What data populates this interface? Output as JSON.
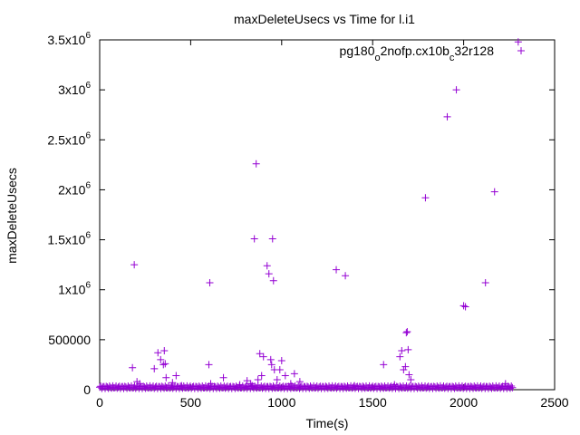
{
  "chart_data": {
    "type": "scatter",
    "title": "maxDeleteUsecs vs Time for l.i1",
    "xlabel": "Time(s)",
    "ylabel": "maxDeleteUsecs",
    "xlim": [
      0,
      2500
    ],
    "ylim": [
      0,
      3500000
    ],
    "grid": false,
    "legend_position": "top-right",
    "x_ticks": [
      {
        "value": 0,
        "label": "0"
      },
      {
        "value": 500,
        "label": "500"
      },
      {
        "value": 1000,
        "label": "1000"
      },
      {
        "value": 1500,
        "label": "1500"
      },
      {
        "value": 2000,
        "label": "2000"
      },
      {
        "value": 2500,
        "label": "2500"
      }
    ],
    "y_ticks": [
      {
        "value": 0,
        "base": "0",
        "exp": ""
      },
      {
        "value": 500000,
        "base": "500000",
        "exp": ""
      },
      {
        "value": 1000000,
        "base": "1x10",
        "exp": "6"
      },
      {
        "value": 1500000,
        "base": "1.5x10",
        "exp": "6"
      },
      {
        "value": 2000000,
        "base": "2x10",
        "exp": "6"
      },
      {
        "value": 2500000,
        "base": "2.5x10",
        "exp": "6"
      },
      {
        "value": 3000000,
        "base": "3x10",
        "exp": "6"
      },
      {
        "value": 3500000,
        "base": "3.5x10",
        "exp": "6"
      }
    ],
    "series": [
      {
        "name_parts": [
          {
            "text": "pg180",
            "sub": false
          },
          {
            "text": "o",
            "sub": true
          },
          {
            "text": "2nofp.cx10b",
            "sub": false
          },
          {
            "text": "c",
            "sub": true
          },
          {
            "text": "32r128",
            "sub": false
          }
        ],
        "color": "#9400d3",
        "marker": "plus",
        "points": [
          [
            180,
            220000
          ],
          [
            190,
            1250000
          ],
          [
            205,
            80000
          ],
          [
            220,
            60000
          ],
          [
            300,
            210000
          ],
          [
            320,
            370000
          ],
          [
            335,
            300000
          ],
          [
            350,
            250000
          ],
          [
            355,
            390000
          ],
          [
            360,
            260000
          ],
          [
            365,
            120000
          ],
          [
            400,
            70000
          ],
          [
            420,
            140000
          ],
          [
            450,
            40000
          ],
          [
            600,
            250000
          ],
          [
            605,
            1070000
          ],
          [
            610,
            60000
          ],
          [
            680,
            120000
          ],
          [
            770,
            50000
          ],
          [
            810,
            90000
          ],
          [
            830,
            60000
          ],
          [
            840,
            40000
          ],
          [
            850,
            1510000
          ],
          [
            860,
            2260000
          ],
          [
            870,
            100000
          ],
          [
            880,
            360000
          ],
          [
            890,
            140000
          ],
          [
            900,
            330000
          ],
          [
            920,
            1240000
          ],
          [
            930,
            1160000
          ],
          [
            940,
            300000
          ],
          [
            945,
            250000
          ],
          [
            950,
            1510000
          ],
          [
            955,
            1090000
          ],
          [
            960,
            200000
          ],
          [
            975,
            100000
          ],
          [
            990,
            200000
          ],
          [
            1000,
            290000
          ],
          [
            1020,
            140000
          ],
          [
            1050,
            60000
          ],
          [
            1070,
            160000
          ],
          [
            1100,
            80000
          ],
          [
            1300,
            1200000
          ],
          [
            1350,
            1140000
          ],
          [
            1400,
            40000
          ],
          [
            1560,
            250000
          ],
          [
            1620,
            50000
          ],
          [
            1650,
            330000
          ],
          [
            1660,
            390000
          ],
          [
            1670,
            200000
          ],
          [
            1680,
            230000
          ],
          [
            1685,
            570000
          ],
          [
            1690,
            580000
          ],
          [
            1695,
            400000
          ],
          [
            1700,
            150000
          ],
          [
            1710,
            100000
          ],
          [
            1790,
            1920000
          ],
          [
            1910,
            2730000
          ],
          [
            1960,
            3000000
          ],
          [
            2000,
            840000
          ],
          [
            2010,
            830000
          ],
          [
            2120,
            1070000
          ],
          [
            2170,
            1980000
          ],
          [
            2230,
            60000
          ],
          [
            2300,
            3480000
          ]
        ]
      }
    ]
  }
}
